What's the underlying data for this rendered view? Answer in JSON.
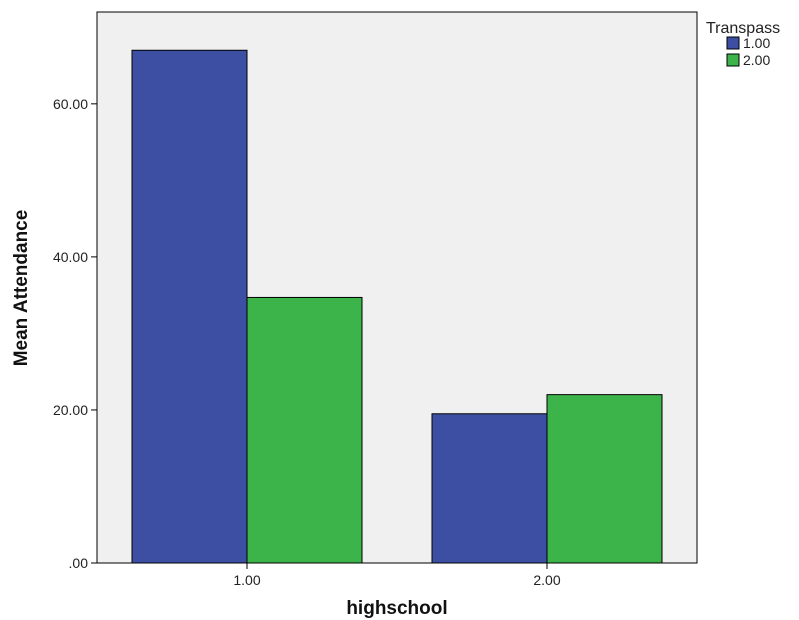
{
  "chart_data": {
    "type": "bar",
    "xlabel": "highschool",
    "ylabel": "Mean Attendance",
    "categories": [
      "1.00",
      "2.00"
    ],
    "legend_title": "Transpass",
    "legend_position": "top-right",
    "series": [
      {
        "name": "1.00",
        "color": "#3d4fa3",
        "values": [
          67.0,
          19.5
        ]
      },
      {
        "name": "2.00",
        "color": "#3cb44a",
        "values": [
          34.7,
          22.0
        ]
      }
    ],
    "ylim": [
      0,
      72
    ],
    "yticks": [
      0,
      20,
      40,
      60
    ],
    "ytick_labels": [
      ".00",
      "20.00",
      "40.00",
      "60.00"
    ],
    "grid": false,
    "plot_background": "#f0f0f0"
  }
}
